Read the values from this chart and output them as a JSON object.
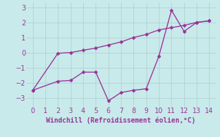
{
  "xlabel": "Windchill (Refroidissement éolien,°C)",
  "line1_x": [
    0,
    2,
    3,
    4,
    5,
    6,
    7,
    8,
    9,
    10,
    11,
    12,
    13,
    14
  ],
  "line1_y": [
    -2.5,
    -1.9,
    -1.85,
    -1.3,
    -1.3,
    -3.2,
    -2.65,
    -2.5,
    -2.4,
    -0.25,
    2.8,
    1.4,
    2.0,
    2.1
  ],
  "line2_x": [
    0,
    2,
    3,
    4,
    5,
    6,
    7,
    8,
    9,
    10,
    11,
    12,
    13,
    14
  ],
  "line2_y": [
    -2.5,
    -0.05,
    0.0,
    0.15,
    0.3,
    0.5,
    0.7,
    1.0,
    1.2,
    1.5,
    1.65,
    1.8,
    2.0,
    2.1
  ],
  "line_color": "#993399",
  "bg_color": "#c8eaea",
  "grid_color": "#aacccc",
  "xlim": [
    -0.5,
    14.5
  ],
  "ylim": [
    -3.6,
    3.3
  ],
  "yticks": [
    -3,
    -2,
    -1,
    0,
    1,
    2,
    3
  ],
  "xticks": [
    0,
    1,
    2,
    3,
    4,
    5,
    6,
    7,
    8,
    9,
    10,
    11,
    12,
    13,
    14
  ],
  "marker": "D",
  "marker_size": 2.5,
  "linewidth": 1.0,
  "tick_fontsize": 7,
  "xlabel_fontsize": 7
}
